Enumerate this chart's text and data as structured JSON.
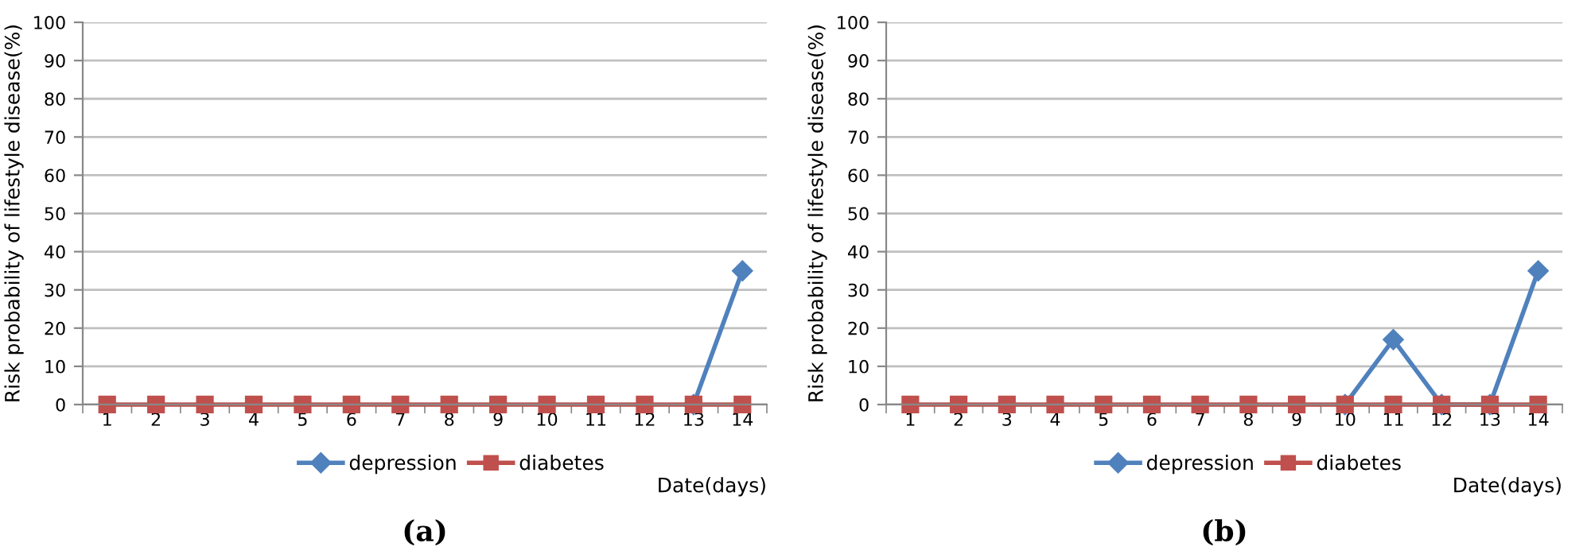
{
  "chart_data": [
    {
      "type": "line",
      "categories": [
        "1",
        "2",
        "3",
        "4",
        "5",
        "6",
        "7",
        "8",
        "9",
        "10",
        "11",
        "12",
        "13",
        "14"
      ],
      "ylabel": "Risk probability of lifestyle disease(%)",
      "xlabel": "Date(days)",
      "ylim": [
        0,
        100
      ],
      "yticks": [
        0,
        10,
        20,
        30,
        40,
        50,
        60,
        70,
        80,
        90,
        100
      ],
      "grid": "y",
      "legend": "bottom",
      "annotations": [
        "(a)"
      ],
      "series": [
        {
          "name": "depression",
          "color": "#4f81bd",
          "marker": "diamond",
          "values": [
            null,
            null,
            null,
            null,
            null,
            null,
            null,
            null,
            null,
            null,
            null,
            null,
            0,
            35
          ]
        },
        {
          "name": "diabetes",
          "color": "#c0504d",
          "marker": "square",
          "values": [
            0,
            0,
            0,
            0,
            0,
            0,
            0,
            0,
            0,
            0,
            0,
            0,
            0,
            0
          ]
        }
      ]
    },
    {
      "type": "line",
      "categories": [
        "1",
        "2",
        "3",
        "4",
        "5",
        "6",
        "7",
        "8",
        "9",
        "10",
        "11",
        "12",
        "13",
        "14"
      ],
      "ylabel": "Risk probability of lifestyle disease(%)",
      "xlabel": "Date(days)",
      "ylim": [
        0,
        100
      ],
      "yticks": [
        0,
        10,
        20,
        30,
        40,
        50,
        60,
        70,
        80,
        90,
        100
      ],
      "grid": "y",
      "legend": "bottom",
      "annotations": [
        "(b)"
      ],
      "series": [
        {
          "name": "depression",
          "color": "#4f81bd",
          "marker": "diamond",
          "values": [
            null,
            null,
            null,
            null,
            null,
            null,
            null,
            null,
            null,
            0,
            17,
            0,
            0,
            35
          ]
        },
        {
          "name": "diabetes",
          "color": "#c0504d",
          "marker": "square",
          "values": [
            0,
            0,
            0,
            0,
            0,
            0,
            0,
            0,
            0,
            0,
            0,
            0,
            0,
            0
          ]
        }
      ]
    }
  ]
}
